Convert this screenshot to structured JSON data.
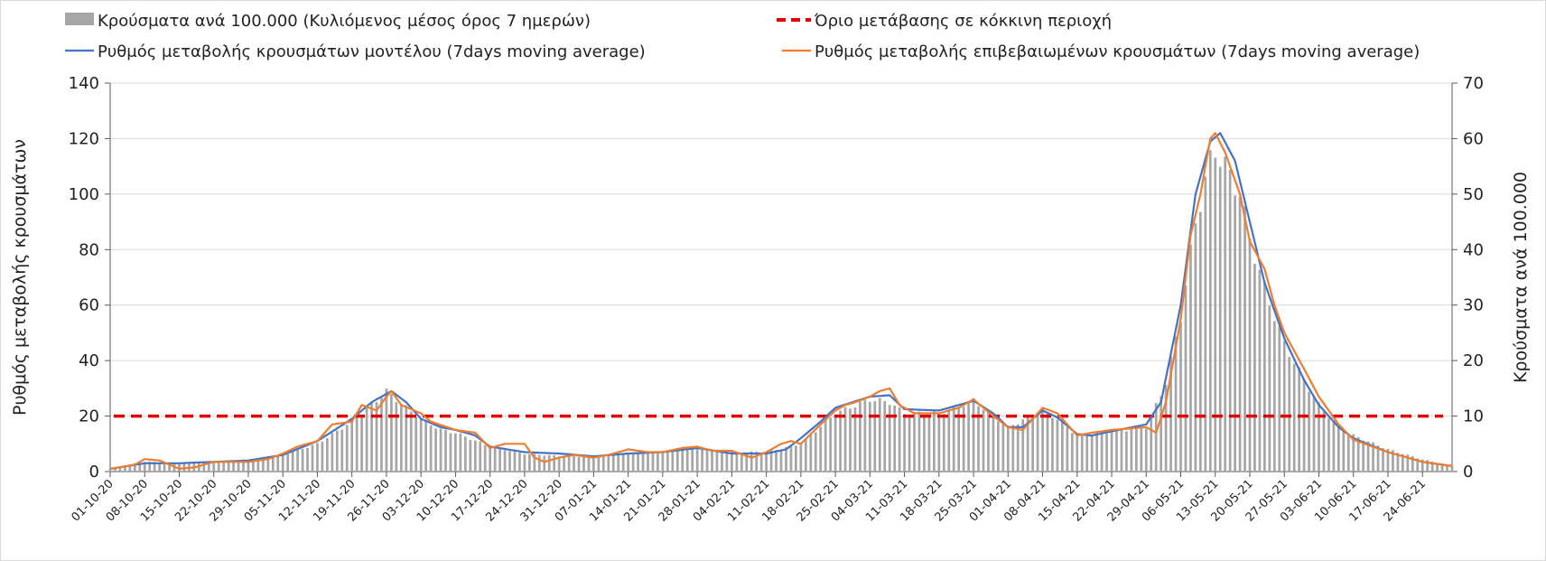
{
  "chart_data": {
    "type": "bar",
    "title": "",
    "ylabel_left": "Ρυθμός μεταβολής κρουσμάτων",
    "ylabel_right": "Κρούσματα ανά 100.000",
    "ylim_left": [
      0,
      140
    ],
    "ylim_right": [
      0,
      70
    ],
    "yticks_left": [
      "0",
      "20",
      "40",
      "60",
      "80",
      "100",
      "120",
      "140"
    ],
    "yticks_right": [
      "0",
      "10",
      "20",
      "30",
      "40",
      "50",
      "60",
      "70"
    ],
    "x_range": [
      "01-10-20",
      "30-06-21"
    ],
    "x_tick_labels": [
      "01-10-20",
      "08-10-20",
      "15-10-20",
      "22-10-20",
      "29-10-20",
      "05-11-20",
      "12-11-20",
      "19-11-20",
      "26-11-20",
      "03-12-20",
      "10-12-20",
      "17-12-20",
      "24-12-20",
      "31-12-20",
      "07-01-21",
      "14-01-21",
      "21-01-21",
      "28-01-21",
      "04-02-21",
      "11-02-21",
      "18-02-21",
      "25-02-21",
      "04-03-21",
      "11-03-21",
      "18-03-21",
      "25-03-21",
      "01-04-21",
      "08-04-21",
      "15-04-21",
      "22-04-21",
      "29-04-21",
      "06-05-21",
      "13-05-21",
      "20-05-21",
      "27-05-21",
      "03-06-21",
      "10-06-21",
      "17-06-21",
      "24-06-21"
    ],
    "grid": "horizontal",
    "legend_position": "top",
    "legend": [
      {
        "label": "Κρούσματα ανά 100.000 (Κυλιόμενος μέσος όρος 7 ημερών)",
        "kind": "bar",
        "color": "#a6a6a6"
      },
      {
        "label": "Όριο μετάβασης σε κόκκινη περιοχή",
        "kind": "dashed-line",
        "color": "#e00000"
      },
      {
        "label": "Ρυθμός μεταβολής κρουσμάτων μοντέλου (7days moving average)",
        "kind": "line",
        "color": "#4472c4"
      },
      {
        "label": "Ρυθμός μεταβολής επιβεβαιωμένων κρουσμάτων (7days moving average)",
        "kind": "line",
        "color": "#ed7d31"
      }
    ],
    "threshold": {
      "axis": "left",
      "value": 20,
      "color": "#e00000"
    },
    "series": [
      {
        "name": "Κρούσματα ανά 100.000 (Κυλιόμενος μέσος όρος 7 ημερών)",
        "kind": "bar",
        "axis": "right",
        "color": "#a6a6a6",
        "key_points": [
          [
            "01-10-20",
            0.5
          ],
          [
            "08-10-20",
            1.8
          ],
          [
            "15-10-20",
            1.5
          ],
          [
            "22-10-20",
            1.7
          ],
          [
            "29-10-20",
            2.0
          ],
          [
            "05-11-20",
            3.0
          ],
          [
            "12-11-20",
            5.0
          ],
          [
            "19-11-20",
            9.0
          ],
          [
            "23-11-20",
            12.0
          ],
          [
            "26-11-20",
            14.5
          ],
          [
            "30-11-20",
            11.5
          ],
          [
            "03-12-20",
            9.5
          ],
          [
            "07-12-20",
            7.5
          ],
          [
            "10-12-20",
            7.0
          ],
          [
            "17-12-20",
            4.5
          ],
          [
            "24-12-20",
            3.2
          ],
          [
            "31-12-20",
            2.8
          ],
          [
            "07-01-21",
            2.7
          ],
          [
            "14-01-21",
            3.2
          ],
          [
            "21-01-21",
            3.6
          ],
          [
            "28-01-21",
            4.2
          ],
          [
            "04-02-21",
            3.5
          ],
          [
            "11-02-21",
            3.5
          ],
          [
            "18-02-21",
            5.0
          ],
          [
            "25-02-21",
            10.5
          ],
          [
            "04-03-21",
            13.0
          ],
          [
            "08-03-21",
            12.5
          ],
          [
            "11-03-21",
            10.5
          ],
          [
            "18-03-21",
            10.5
          ],
          [
            "25-03-21",
            12.8
          ],
          [
            "01-04-21",
            8.0
          ],
          [
            "08-04-21",
            11.0
          ],
          [
            "11-04-21",
            9.5
          ],
          [
            "15-04-21",
            6.5
          ],
          [
            "22-04-21",
            7.2
          ],
          [
            "29-04-21",
            8.0
          ],
          [
            "03-05-21",
            16.0
          ],
          [
            "06-05-21",
            28.0
          ],
          [
            "09-05-21",
            45.0
          ],
          [
            "12-05-21",
            56.0
          ],
          [
            "13-05-21",
            58.0
          ],
          [
            "15-05-21",
            55.0
          ],
          [
            "18-05-21",
            50.0
          ],
          [
            "20-05-21",
            42.0
          ],
          [
            "23-05-21",
            33.0
          ],
          [
            "27-05-21",
            23.0
          ],
          [
            "31-05-21",
            16.5
          ],
          [
            "03-06-21",
            12.0
          ],
          [
            "07-06-21",
            8.0
          ],
          [
            "10-06-21",
            6.5
          ],
          [
            "17-06-21",
            4.0
          ],
          [
            "24-06-21",
            2.2
          ],
          [
            "30-06-21",
            1.0
          ]
        ]
      },
      {
        "name": "Ρυθμός μεταβολής κρουσμάτων μοντέλου (7days moving average)",
        "kind": "line",
        "axis": "left",
        "color": "#4472c4",
        "key_points": [
          [
            "01-10-20",
            1
          ],
          [
            "08-10-20",
            3
          ],
          [
            "15-10-20",
            3
          ],
          [
            "22-10-20",
            3.5
          ],
          [
            "29-10-20",
            4
          ],
          [
            "05-11-20",
            6
          ],
          [
            "12-11-20",
            11
          ],
          [
            "19-11-20",
            19
          ],
          [
            "23-11-20",
            25
          ],
          [
            "27-11-20",
            29
          ],
          [
            "30-11-20",
            25
          ],
          [
            "03-12-20",
            19
          ],
          [
            "07-12-20",
            16
          ],
          [
            "10-12-20",
            15
          ],
          [
            "14-12-20",
            13
          ],
          [
            "17-12-20",
            9
          ],
          [
            "24-12-20",
            7
          ],
          [
            "31-12-20",
            6.5
          ],
          [
            "07-01-21",
            5.5
          ],
          [
            "14-01-21",
            6.5
          ],
          [
            "21-01-21",
            7
          ],
          [
            "28-01-21",
            8.5
          ],
          [
            "04-02-21",
            6.5
          ],
          [
            "11-02-21",
            6.5
          ],
          [
            "15-02-21",
            8
          ],
          [
            "18-02-21",
            12
          ],
          [
            "22-02-21",
            18
          ],
          [
            "25-02-21",
            23
          ],
          [
            "04-03-21",
            27
          ],
          [
            "08-03-21",
            27.5
          ],
          [
            "11-03-21",
            22.5
          ],
          [
            "18-03-21",
            22
          ],
          [
            "25-03-21",
            25.5
          ],
          [
            "29-03-21",
            21
          ],
          [
            "01-04-21",
            16
          ],
          [
            "04-04-21",
            16
          ],
          [
            "08-04-21",
            22
          ],
          [
            "11-04-21",
            19.5
          ],
          [
            "15-04-21",
            13.5
          ],
          [
            "18-04-21",
            13
          ],
          [
            "22-04-21",
            14.5
          ],
          [
            "29-04-21",
            17
          ],
          [
            "02-05-21",
            25
          ],
          [
            "06-05-21",
            60
          ],
          [
            "09-05-21",
            100
          ],
          [
            "12-05-21",
            119
          ],
          [
            "14-05-21",
            122
          ],
          [
            "17-05-21",
            112
          ],
          [
            "20-05-21",
            90
          ],
          [
            "23-05-21",
            68
          ],
          [
            "27-05-21",
            48
          ],
          [
            "31-05-21",
            33
          ],
          [
            "03-06-21",
            24
          ],
          [
            "07-06-21",
            16
          ],
          [
            "10-06-21",
            12
          ],
          [
            "17-06-21",
            7
          ],
          [
            "24-06-21",
            3.5
          ],
          [
            "30-06-21",
            2
          ]
        ]
      },
      {
        "name": "Ρυθμός μεταβολής επιβεβαιωμένων κρουσμάτων (7days moving average)",
        "kind": "line",
        "axis": "left",
        "color": "#ed7d31",
        "key_points": [
          [
            "01-10-20",
            1
          ],
          [
            "06-10-20",
            2.5
          ],
          [
            "08-10-20",
            4.5
          ],
          [
            "11-10-20",
            4
          ],
          [
            "15-10-20",
            1
          ],
          [
            "18-10-20",
            1.5
          ],
          [
            "22-10-20",
            3.5
          ],
          [
            "29-10-20",
            3.5
          ],
          [
            "02-11-20",
            4.5
          ],
          [
            "05-11-20",
            6.5
          ],
          [
            "08-11-20",
            9
          ],
          [
            "12-11-20",
            11
          ],
          [
            "15-11-20",
            17
          ],
          [
            "19-11-20",
            18
          ],
          [
            "21-11-20",
            24
          ],
          [
            "24-11-20",
            22
          ],
          [
            "26-11-20",
            27
          ],
          [
            "27-11-20",
            29
          ],
          [
            "29-11-20",
            24
          ],
          [
            "03-12-20",
            21
          ],
          [
            "05-12-20",
            18
          ],
          [
            "10-12-20",
            15
          ],
          [
            "14-12-20",
            14
          ],
          [
            "17-12-20",
            8.5
          ],
          [
            "20-12-20",
            10
          ],
          [
            "24-12-20",
            10
          ],
          [
            "26-12-20",
            5
          ],
          [
            "28-12-20",
            3.5
          ],
          [
            "31-12-20",
            5
          ],
          [
            "03-01-21",
            6
          ],
          [
            "07-01-21",
            5
          ],
          [
            "10-01-21",
            6
          ],
          [
            "14-01-21",
            8
          ],
          [
            "18-01-21",
            7
          ],
          [
            "21-01-21",
            7
          ],
          [
            "25-01-21",
            8.5
          ],
          [
            "28-01-21",
            9
          ],
          [
            "31-01-21",
            7.5
          ],
          [
            "04-02-21",
            7.5
          ],
          [
            "08-02-21",
            5
          ],
          [
            "11-02-21",
            7
          ],
          [
            "14-02-21",
            10
          ],
          [
            "16-02-21",
            11
          ],
          [
            "18-02-21",
            10
          ],
          [
            "22-02-21",
            17
          ],
          [
            "25-02-21",
            22
          ],
          [
            "27-02-21",
            24
          ],
          [
            "01-03-21",
            25
          ],
          [
            "04-03-21",
            27
          ],
          [
            "06-03-21",
            29
          ],
          [
            "08-03-21",
            30
          ],
          [
            "10-03-21",
            24
          ],
          [
            "13-03-21",
            21
          ],
          [
            "18-03-21",
            21
          ],
          [
            "22-03-21",
            23
          ],
          [
            "25-03-21",
            26
          ],
          [
            "29-03-21",
            20
          ],
          [
            "01-04-21",
            16
          ],
          [
            "04-04-21",
            15
          ],
          [
            "08-04-21",
            23
          ],
          [
            "11-04-21",
            21
          ],
          [
            "15-04-21",
            13
          ],
          [
            "18-04-21",
            14
          ],
          [
            "22-04-21",
            15
          ],
          [
            "29-04-21",
            16
          ],
          [
            "01-05-21",
            14
          ],
          [
            "03-05-21",
            25
          ],
          [
            "06-05-21",
            55
          ],
          [
            "08-05-21",
            85
          ],
          [
            "10-05-21",
            100
          ],
          [
            "12-05-21",
            120
          ],
          [
            "13-05-21",
            122
          ],
          [
            "15-05-21",
            115
          ],
          [
            "18-05-21",
            100
          ],
          [
            "20-05-21",
            83
          ],
          [
            "23-05-21",
            73
          ],
          [
            "25-05-21",
            60
          ],
          [
            "27-05-21",
            50
          ],
          [
            "31-05-21",
            37
          ],
          [
            "03-06-21",
            27
          ],
          [
            "07-06-21",
            17
          ],
          [
            "10-06-21",
            11.5
          ],
          [
            "17-06-21",
            7
          ],
          [
            "24-06-21",
            3.5
          ],
          [
            "30-06-21",
            2
          ]
        ]
      }
    ]
  }
}
